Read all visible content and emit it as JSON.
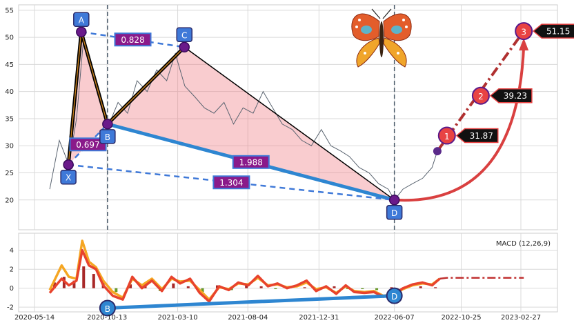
{
  "chart_data": [
    {
      "type": "line",
      "panel": "price",
      "title": "",
      "xlabel": "",
      "ylabel": "",
      "ylim": [
        14.5,
        56
      ],
      "yticks": [
        20,
        25,
        30,
        35,
        40,
        45,
        50,
        55
      ],
      "grid": true,
      "series": [
        {
          "role": "price",
          "x": [
            "2020-06-15",
            "2020-07-05",
            "2020-07-25",
            "2020-08-10",
            "2020-08-25",
            "2020-09-10",
            "2020-09-30",
            "2020-10-15",
            "2020-11-05",
            "2020-11-25",
            "2020-12-15",
            "2021-01-05",
            "2021-01-25",
            "2021-02-15",
            "2021-03-05",
            "2021-03-25",
            "2021-04-15",
            "2021-05-05",
            "2021-05-25",
            "2021-06-15",
            "2021-07-05",
            "2021-07-25",
            "2021-08-15",
            "2021-09-05",
            "2021-09-25",
            "2021-10-15",
            "2021-11-05",
            "2021-11-25",
            "2021-12-15",
            "2022-01-05",
            "2022-01-25",
            "2022-02-15",
            "2022-03-05",
            "2022-03-25",
            "2022-04-15",
            "2022-05-05",
            "2022-05-25",
            "2022-06-07",
            "2022-06-25",
            "2022-07-15",
            "2022-08-05",
            "2022-08-25",
            "2022-09-05"
          ],
          "y": [
            22,
            31,
            26.5,
            35,
            50,
            44,
            38,
            33.5,
            38,
            36,
            42,
            40,
            44,
            42,
            47,
            41,
            39,
            37,
            36,
            38,
            34,
            37,
            36,
            40,
            37,
            34,
            33,
            31,
            30,
            33,
            30,
            29,
            28,
            26,
            25,
            23,
            22,
            20,
            22,
            23,
            24,
            26,
            29
          ]
        }
      ],
      "points": [
        {
          "label": "X",
          "date": "2020-07-24",
          "value": 26.5
        },
        {
          "label": "A",
          "date": "2020-08-20",
          "value": 51.0
        },
        {
          "label": "B",
          "date": "2020-10-14",
          "value": 34.0
        },
        {
          "label": "C",
          "date": "2021-03-24",
          "value": 48.2
        },
        {
          "label": "D",
          "date": "2022-06-07",
          "value": 20.0
        }
      ],
      "ratios": [
        {
          "text": "0.828",
          "between": "A-C"
        },
        {
          "text": "0.697",
          "between": "X-B"
        },
        {
          "text": "1.988",
          "between": "B-D"
        },
        {
          "text": "1.304",
          "between": "X-D"
        }
      ],
      "projection": {
        "start": {
          "date": "2022-09-05",
          "value": 29.0
        },
        "targets": [
          {
            "label": "1",
            "date": "2022-09-25",
            "value": 31.87,
            "text": "31.87"
          },
          {
            "label": "2",
            "date": "2022-12-05",
            "value": 39.23,
            "text": "39.23"
          },
          {
            "label": "3",
            "date": "2023-03-05",
            "value": 51.15,
            "text": "51.15"
          }
        ]
      },
      "vlines": [
        "2020-10-14",
        "2022-06-07"
      ]
    },
    {
      "type": "line",
      "panel": "macd",
      "legend": "MACD (12,26,9)",
      "ylim": [
        -2.5,
        5.8
      ],
      "yticks": [
        -2,
        0,
        2,
        4
      ],
      "xticks": [
        "2020-05-14",
        "2020-10-13",
        "2021-03-10",
        "2021-08-04",
        "2021-12-31",
        "2022-06-07",
        "2022-10-25",
        "2023-02-27"
      ],
      "grid": true,
      "series": [
        {
          "name": "",
          "color": "#e8432d",
          "x": [
            "2020-06-15",
            "2020-07-10",
            "2020-07-25",
            "2020-08-10",
            "2020-08-22",
            "2020-09-05",
            "2020-09-20",
            "2020-10-05",
            "2020-10-25",
            "2020-11-15",
            "2020-12-05",
            "2020-12-25",
            "2021-01-15",
            "2021-02-05",
            "2021-02-25",
            "2021-03-15",
            "2021-04-05",
            "2021-04-25",
            "2021-05-15",
            "2021-06-05",
            "2021-06-25",
            "2021-07-15",
            "2021-08-05",
            "2021-08-25",
            "2021-09-15",
            "2021-10-05",
            "2021-10-25",
            "2021-11-15",
            "2021-12-05",
            "2021-12-25",
            "2022-01-15",
            "2022-02-05",
            "2022-02-25",
            "2022-03-15",
            "2022-04-05",
            "2022-04-25",
            "2022-05-15",
            "2022-06-07",
            "2022-06-25",
            "2022-07-15",
            "2022-08-05",
            "2022-08-25",
            "2022-09-10"
          ],
          "y": [
            -0.5,
            1.0,
            0.3,
            0.8,
            4.0,
            2.4,
            2.0,
            0.3,
            -0.8,
            -1.2,
            1.2,
            0.0,
            0.8,
            -0.3,
            1.2,
            0.5,
            1.0,
            -0.5,
            -1.4,
            0.2,
            -0.2,
            0.6,
            0.3,
            1.3,
            0.2,
            0.5,
            0.0,
            0.3,
            0.8,
            -0.3,
            0.2,
            -0.6,
            0.3,
            -0.4,
            -0.5,
            -0.4,
            -0.9,
            -0.6,
            0.0,
            0.4,
            0.6,
            0.3,
            1.0
          ]
        },
        {
          "name": "",
          "color": "#f5a623",
          "x": [
            "2020-06-15",
            "2020-07-10",
            "2020-07-25",
            "2020-08-10",
            "2020-08-22",
            "2020-09-05",
            "2020-09-20",
            "2020-10-05",
            "2020-10-25",
            "2020-11-15",
            "2020-12-05",
            "2020-12-25",
            "2021-01-15",
            "2021-02-05",
            "2021-02-25",
            "2021-03-15",
            "2021-04-05",
            "2021-04-25",
            "2021-05-15",
            "2021-06-05",
            "2021-06-25",
            "2021-07-15",
            "2021-08-05",
            "2021-08-25",
            "2021-09-15",
            "2021-10-05",
            "2021-10-25",
            "2021-11-15",
            "2021-12-05",
            "2021-12-25",
            "2022-01-15",
            "2022-02-05",
            "2022-02-25",
            "2022-03-15",
            "2022-04-05",
            "2022-04-25",
            "2022-05-15",
            "2022-06-07",
            "2022-06-25",
            "2022-07-15",
            "2022-08-05",
            "2022-08-25",
            "2022-09-10",
            "2022-09-25",
            "2023-03-05"
          ],
          "y": [
            -0.2,
            2.4,
            1.2,
            1.0,
            5.0,
            2.8,
            2.2,
            0.8,
            -0.4,
            -1.0,
            1.0,
            0.3,
            1.0,
            -0.1,
            1.0,
            0.7,
            0.8,
            -0.2,
            -1.2,
            0.1,
            -0.1,
            0.5,
            0.4,
            1.1,
            0.3,
            0.4,
            0.1,
            0.2,
            0.6,
            -0.1,
            0.1,
            -0.5,
            0.2,
            -0.3,
            -0.4,
            -0.3,
            -0.8,
            -0.6,
            -0.1,
            0.3,
            0.5,
            0.4,
            1.0,
            1.1,
            1.1
          ]
        }
      ],
      "histogram": {
        "x": [
          "2020-06-25",
          "2020-07-15",
          "2020-08-05",
          "2020-08-25",
          "2020-09-15",
          "2020-10-05",
          "2020-11-01",
          "2020-12-01",
          "2021-01-01",
          "2021-02-01",
          "2021-03-01",
          "2021-04-01",
          "2021-05-01",
          "2021-06-01",
          "2021-07-01",
          "2021-08-01",
          "2021-09-01",
          "2021-10-01",
          "2021-11-01",
          "2021-12-01",
          "2022-01-01",
          "2022-02-01",
          "2022-03-01",
          "2022-04-01",
          "2022-05-01",
          "2022-06-01",
          "2022-07-01",
          "2022-08-01",
          "2022-09-01"
        ],
        "y": [
          0.6,
          1.2,
          0.8,
          2.3,
          1.5,
          0.6,
          -0.4,
          0.4,
          0.3,
          -0.3,
          0.5,
          0.2,
          -0.4,
          0.3,
          -0.2,
          0.3,
          0.2,
          -0.1,
          0.2,
          0.1,
          -0.2,
          0.2,
          -0.1,
          -0.1,
          -0.2,
          0.1,
          0.2,
          0.2,
          0.1
        ]
      },
      "pattern_points": [
        {
          "label": "B",
          "date": "2020-10-14",
          "value": -2.1
        },
        {
          "label": "D",
          "date": "2022-06-07",
          "value": -0.8
        }
      ]
    }
  ]
}
